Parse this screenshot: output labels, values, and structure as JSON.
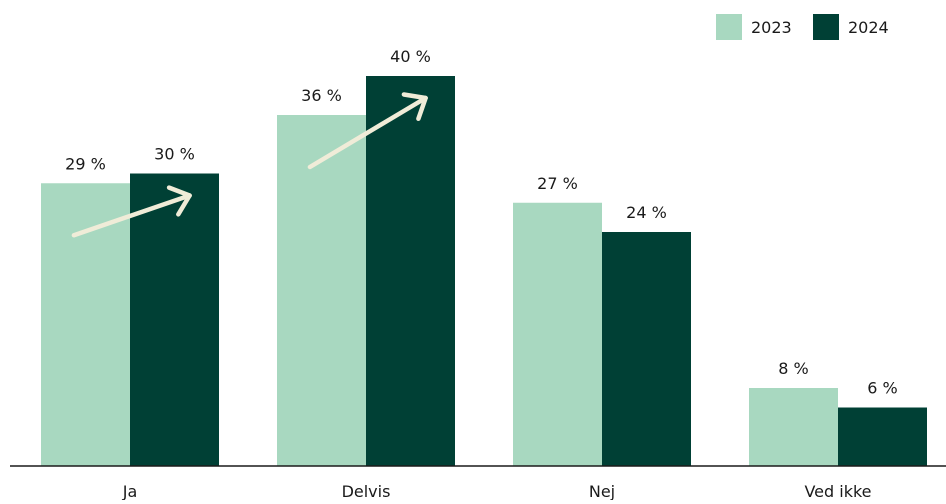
{
  "chart_data": {
    "type": "bar",
    "categories": [
      "Ja",
      "Delvis",
      "Nej",
      "Ved ikke"
    ],
    "series": [
      {
        "name": "2023",
        "values": [
          29,
          36,
          27,
          8
        ],
        "labels": [
          "29 %",
          "36 %",
          "27 %",
          "8 %"
        ],
        "color": "#a8d8c0"
      },
      {
        "name": "2024",
        "values": [
          30,
          40,
          24,
          6
        ],
        "labels": [
          "30 %",
          "40 %",
          "24 %",
          "6 %"
        ],
        "color": "#004035"
      }
    ],
    "ylim": [
      0,
      45
    ],
    "grid": false,
    "legend": "top-right",
    "annotations": [
      {
        "type": "arrow",
        "category": "Ja",
        "meaning": "increase"
      },
      {
        "type": "arrow",
        "category": "Delvis",
        "meaning": "increase"
      }
    ],
    "arrow_color": "#f0ecd8"
  }
}
